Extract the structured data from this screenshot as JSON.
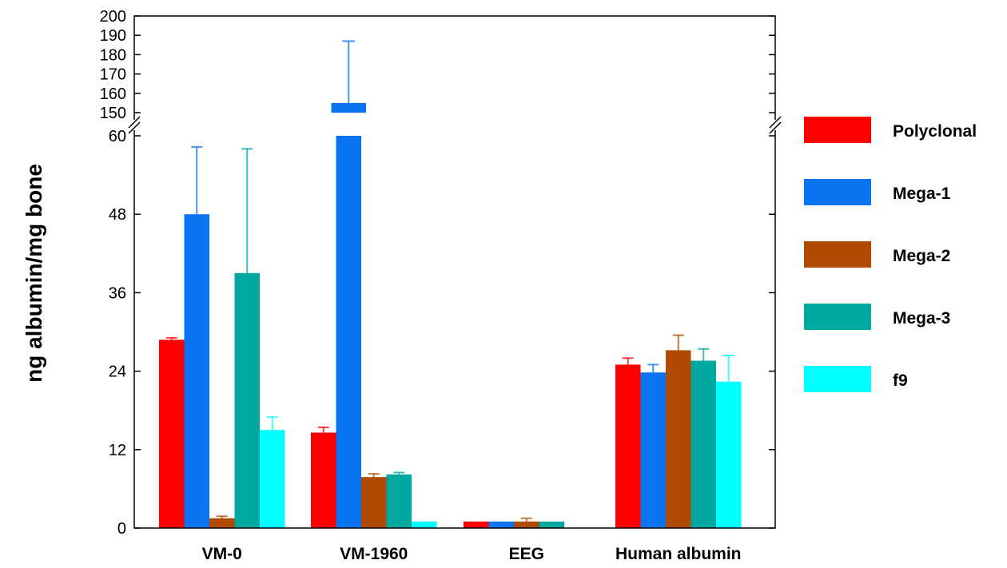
{
  "chart_data": {
    "type": "bar",
    "title": "",
    "xlabel": "",
    "ylabel": "ng albumin/mg bone",
    "categories": [
      "VM-0",
      "VM-1960",
      "EEG",
      "Human albumin"
    ],
    "axis_break": {
      "lower_range": [
        0,
        60
      ],
      "upper_range": [
        150,
        200
      ]
    },
    "y_ticks_lower": [
      "0",
      "12",
      "24",
      "36",
      "48",
      "60"
    ],
    "y_ticks_upper": [
      "150",
      "160",
      "170",
      "180",
      "190",
      "200"
    ],
    "legend_position": "right",
    "series": [
      {
        "name": "Polyclonal",
        "color": "#ff0000",
        "values": [
          28.8,
          14.6,
          1.0,
          25.0
        ],
        "errors": [
          0.3,
          0.8,
          0,
          1.0
        ]
      },
      {
        "name": "Mega-1",
        "color": "#0a74f0",
        "values": [
          48.0,
          155.0,
          1.0,
          23.8
        ],
        "errors": [
          10.3,
          32.0,
          0,
          1.2
        ]
      },
      {
        "name": "Mega-2",
        "color": "#b04a00",
        "values": [
          1.5,
          7.8,
          1.0,
          27.2
        ],
        "errors": [
          0.3,
          0.5,
          0.5,
          2.3
        ]
      },
      {
        "name": "Mega-3",
        "color": "#00a8a0",
        "values": [
          39.0,
          8.2,
          1.0,
          25.6
        ],
        "errors": [
          19.0,
          0.3,
          0,
          1.8
        ]
      },
      {
        "name": "f9",
        "color": "#00ffff",
        "values": [
          15.0,
          1.0,
          0,
          22.4
        ],
        "errors": [
          2.0,
          0,
          0,
          4.0
        ]
      }
    ]
  }
}
